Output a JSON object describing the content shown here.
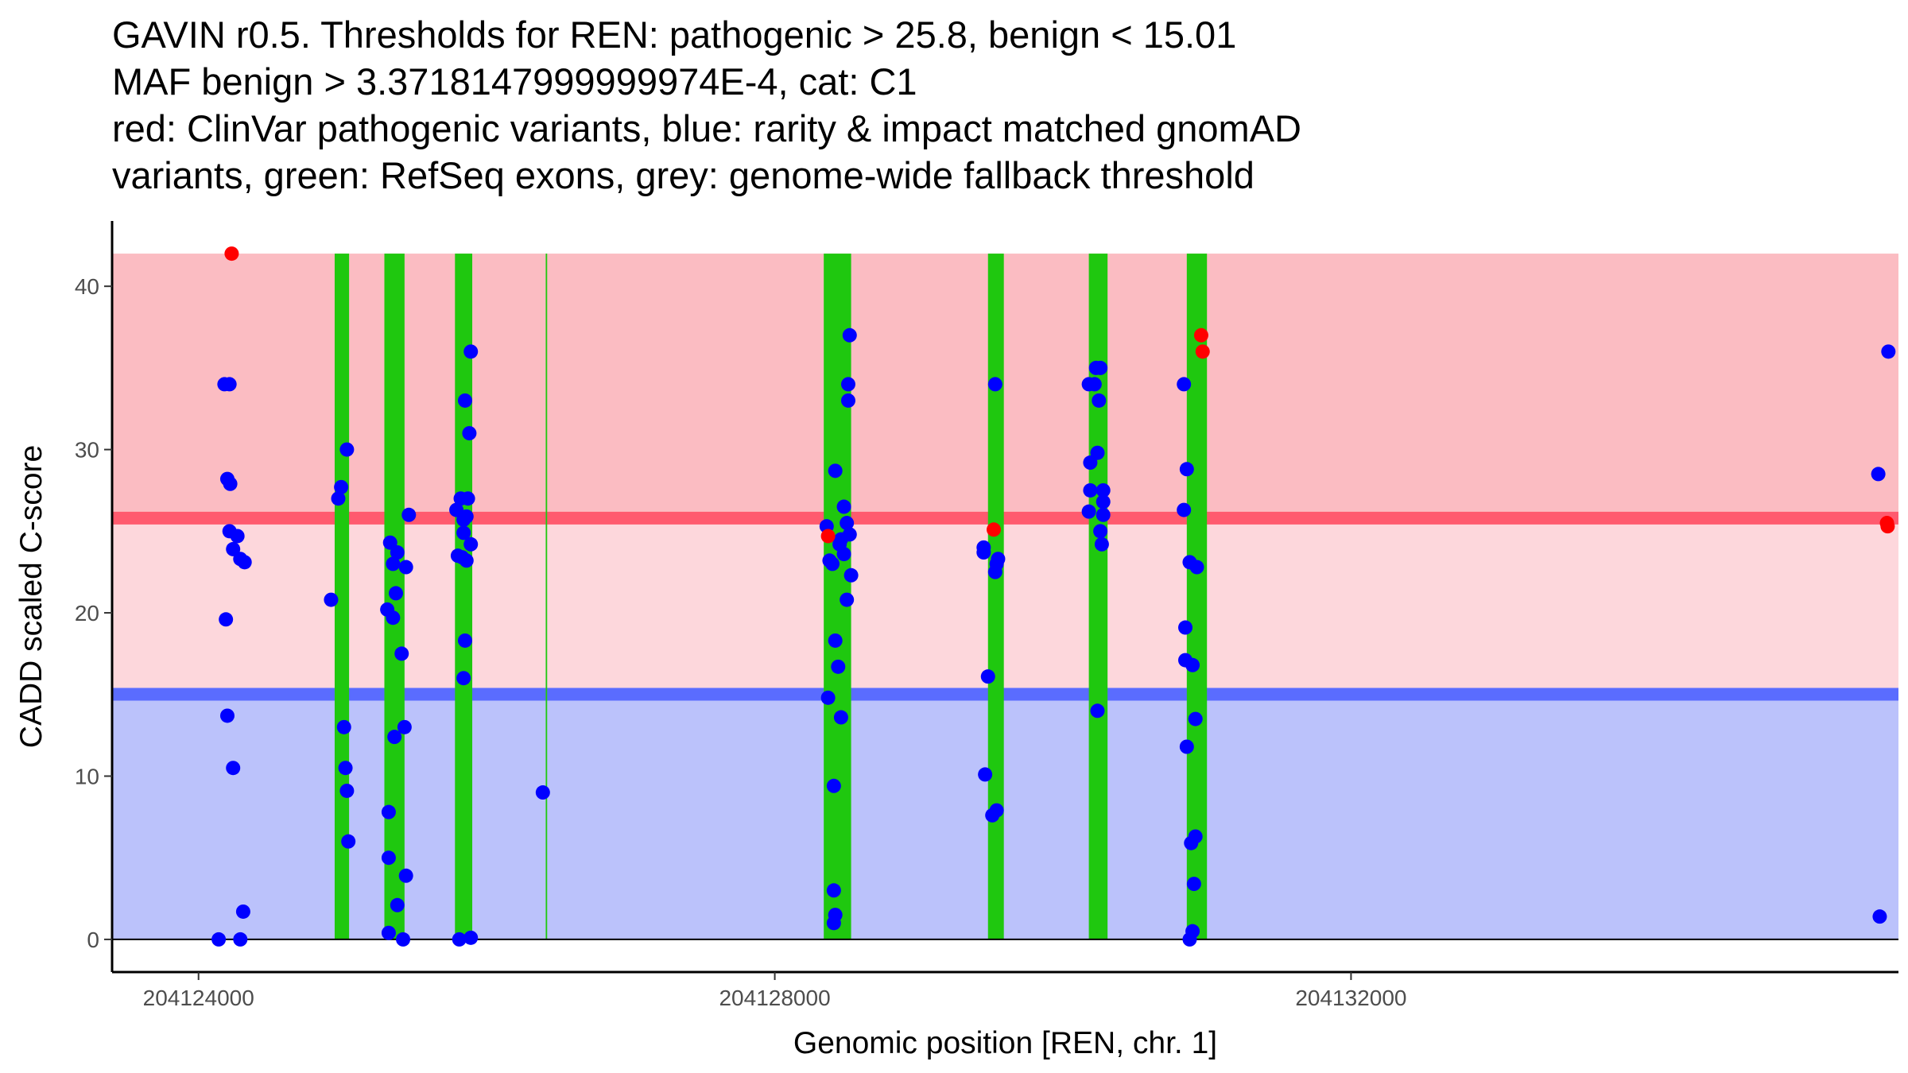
{
  "chart_data": {
    "type": "scatter",
    "title": [
      "GAVIN r0.5. Thresholds for REN: pathogenic > 25.8, benign < 15.01",
      "MAF benign > 3.3718147999999974E-4, cat: C1",
      "red: ClinVar pathogenic variants, blue: rarity & impact matched gnomAD",
      "variants, green: RefSeq exons, grey: genome-wide fallback threshold"
    ],
    "xlabel": "Genomic position [REN, chr. 1]",
    "ylabel": "CADD scaled C-score",
    "xlim": [
      204123400,
      204135800
    ],
    "ylim": [
      -2,
      44
    ],
    "x_ticks": [
      {
        "value": 204124000,
        "label": "204124000"
      },
      {
        "value": 204128000,
        "label": "204128000"
      },
      {
        "value": 204132000,
        "label": "204132000"
      }
    ],
    "y_ticks": [
      {
        "value": 0,
        "label": "0"
      },
      {
        "value": 10,
        "label": "10"
      },
      {
        "value": 20,
        "label": "20"
      },
      {
        "value": 30,
        "label": "30"
      },
      {
        "value": 40,
        "label": "40"
      }
    ],
    "thresholds": {
      "pathogenic": 25.8,
      "benign": 15.01,
      "ymax": 42,
      "ymin": 0
    },
    "colors": {
      "pathogenic_region": "#fbbcc2",
      "middle_region": "#fdd7dc",
      "benign_region": "#bbc2fb",
      "pathogenic_line": "#ff5a6e",
      "benign_line": "#5a6cff",
      "exon": "#1fc80f",
      "clinvar": "#ff0000",
      "gnomad": "#0000ff"
    },
    "exons": [
      {
        "start": 204124945,
        "end": 204125045
      },
      {
        "start": 204125290,
        "end": 204125430
      },
      {
        "start": 204125780,
        "end": 204125900
      },
      {
        "start": 204126410,
        "end": 204126420
      },
      {
        "start": 204128340,
        "end": 204128530
      },
      {
        "start": 204129480,
        "end": 204129590
      },
      {
        "start": 204130180,
        "end": 204130310
      },
      {
        "start": 204130860,
        "end": 204131000
      }
    ],
    "series": [
      {
        "name": "ClinVar pathogenic variants",
        "color": "#ff0000",
        "points": [
          [
            204124230,
            42
          ],
          [
            204128370,
            24.7
          ],
          [
            204129520,
            25.1
          ],
          [
            204130960,
            37
          ],
          [
            204130970,
            36
          ],
          [
            204135720,
            25.5
          ],
          [
            204135725,
            25.3
          ]
        ]
      },
      {
        "name": "rarity & impact matched gnomAD variants",
        "color": "#0000ff",
        "points": [
          [
            204124180,
            34
          ],
          [
            204124215,
            34
          ],
          [
            204124200,
            28.2
          ],
          [
            204124220,
            27.9
          ],
          [
            204124215,
            25
          ],
          [
            204124270,
            24.7
          ],
          [
            204124240,
            23.9
          ],
          [
            204124290,
            23.3
          ],
          [
            204124320,
            23.1
          ],
          [
            204124190,
            19.6
          ],
          [
            204124200,
            13.7
          ],
          [
            204124240,
            10.5
          ],
          [
            204124310,
            1.7
          ],
          [
            204124140,
            0
          ],
          [
            204124290,
            0
          ],
          [
            204124990,
            27.7
          ],
          [
            204124970,
            27
          ],
          [
            204124920,
            20.8
          ],
          [
            204125030,
            30
          ],
          [
            204125010,
            13
          ],
          [
            204125020,
            10.5
          ],
          [
            204125030,
            9.1
          ],
          [
            204125040,
            6
          ],
          [
            204125330,
            24.3
          ],
          [
            204125380,
            23.7
          ],
          [
            204125350,
            23
          ],
          [
            204125370,
            21.2
          ],
          [
            204125440,
            22.8
          ],
          [
            204125310,
            20.2
          ],
          [
            204125350,
            19.7
          ],
          [
            204125410,
            17.5
          ],
          [
            204125460,
            26
          ],
          [
            204125430,
            13
          ],
          [
            204125360,
            12.4
          ],
          [
            204125320,
            7.8
          ],
          [
            204125320,
            5
          ],
          [
            204125440,
            3.9
          ],
          [
            204125380,
            2.1
          ],
          [
            204125320,
            0.4
          ],
          [
            204125420,
            0
          ],
          [
            204125790,
            26.3
          ],
          [
            204125820,
            27
          ],
          [
            204125840,
            25.7
          ],
          [
            204125870,
            27
          ],
          [
            204125860,
            25.9
          ],
          [
            204125840,
            24.9
          ],
          [
            204125890,
            24.2
          ],
          [
            204125800,
            23.5
          ],
          [
            204125830,
            23.4
          ],
          [
            204125860,
            23.2
          ],
          [
            204125850,
            33
          ],
          [
            204125880,
            31
          ],
          [
            204125890,
            36
          ],
          [
            204125850,
            18.3
          ],
          [
            204125840,
            16
          ],
          [
            204125810,
            0
          ],
          [
            204125890,
            0.1
          ],
          [
            204126390,
            9
          ],
          [
            204128360,
            25.3
          ],
          [
            204128380,
            23.2
          ],
          [
            204128400,
            23
          ],
          [
            204128450,
            24.2
          ],
          [
            204128460,
            24.5
          ],
          [
            204128480,
            26.5
          ],
          [
            204128500,
            25.5
          ],
          [
            204128520,
            24.8
          ],
          [
            204128480,
            23.6
          ],
          [
            204128530,
            22.3
          ],
          [
            204128500,
            20.8
          ],
          [
            204128420,
            28.7
          ],
          [
            204128510,
            34
          ],
          [
            204128510,
            33
          ],
          [
            204128520,
            37
          ],
          [
            204128420,
            18.3
          ],
          [
            204128440,
            16.7
          ],
          [
            204128460,
            13.6
          ],
          [
            204128370,
            14.8
          ],
          [
            204128410,
            9.4
          ],
          [
            204128410,
            3
          ],
          [
            204128420,
            1.5
          ],
          [
            204128410,
            1
          ],
          [
            204129450,
            24
          ],
          [
            204129450,
            23.7
          ],
          [
            204129550,
            23.3
          ],
          [
            204129540,
            23
          ],
          [
            204129530,
            22.5
          ],
          [
            204129480,
            16.1
          ],
          [
            204129460,
            10.1
          ],
          [
            204129530,
            34
          ],
          [
            204129540,
            7.9
          ],
          [
            204129510,
            7.6
          ],
          [
            204130180,
            34
          ],
          [
            204130220,
            34
          ],
          [
            204130230,
            35
          ],
          [
            204130260,
            35
          ],
          [
            204130250,
            33
          ],
          [
            204130190,
            29.2
          ],
          [
            204130240,
            29.8
          ],
          [
            204130190,
            27.5
          ],
          [
            204130280,
            27.5
          ],
          [
            204130280,
            26.8
          ],
          [
            204130180,
            26.2
          ],
          [
            204130280,
            26
          ],
          [
            204130260,
            25
          ],
          [
            204130270,
            24.2
          ],
          [
            204130240,
            14
          ],
          [
            204130840,
            34
          ],
          [
            204130860,
            28.8
          ],
          [
            204130840,
            26.3
          ],
          [
            204130880,
            23.1
          ],
          [
            204130930,
            22.8
          ],
          [
            204130850,
            19.1
          ],
          [
            204130850,
            17.1
          ],
          [
            204130900,
            16.8
          ],
          [
            204130920,
            13.5
          ],
          [
            204130860,
            11.8
          ],
          [
            204130890,
            5.9
          ],
          [
            204130920,
            6.3
          ],
          [
            204130910,
            3.4
          ],
          [
            204130900,
            0.5
          ],
          [
            204130880,
            0
          ],
          [
            204135660,
            28.5
          ],
          [
            204135730,
            36
          ],
          [
            204135670,
            1.4
          ]
        ]
      }
    ]
  }
}
